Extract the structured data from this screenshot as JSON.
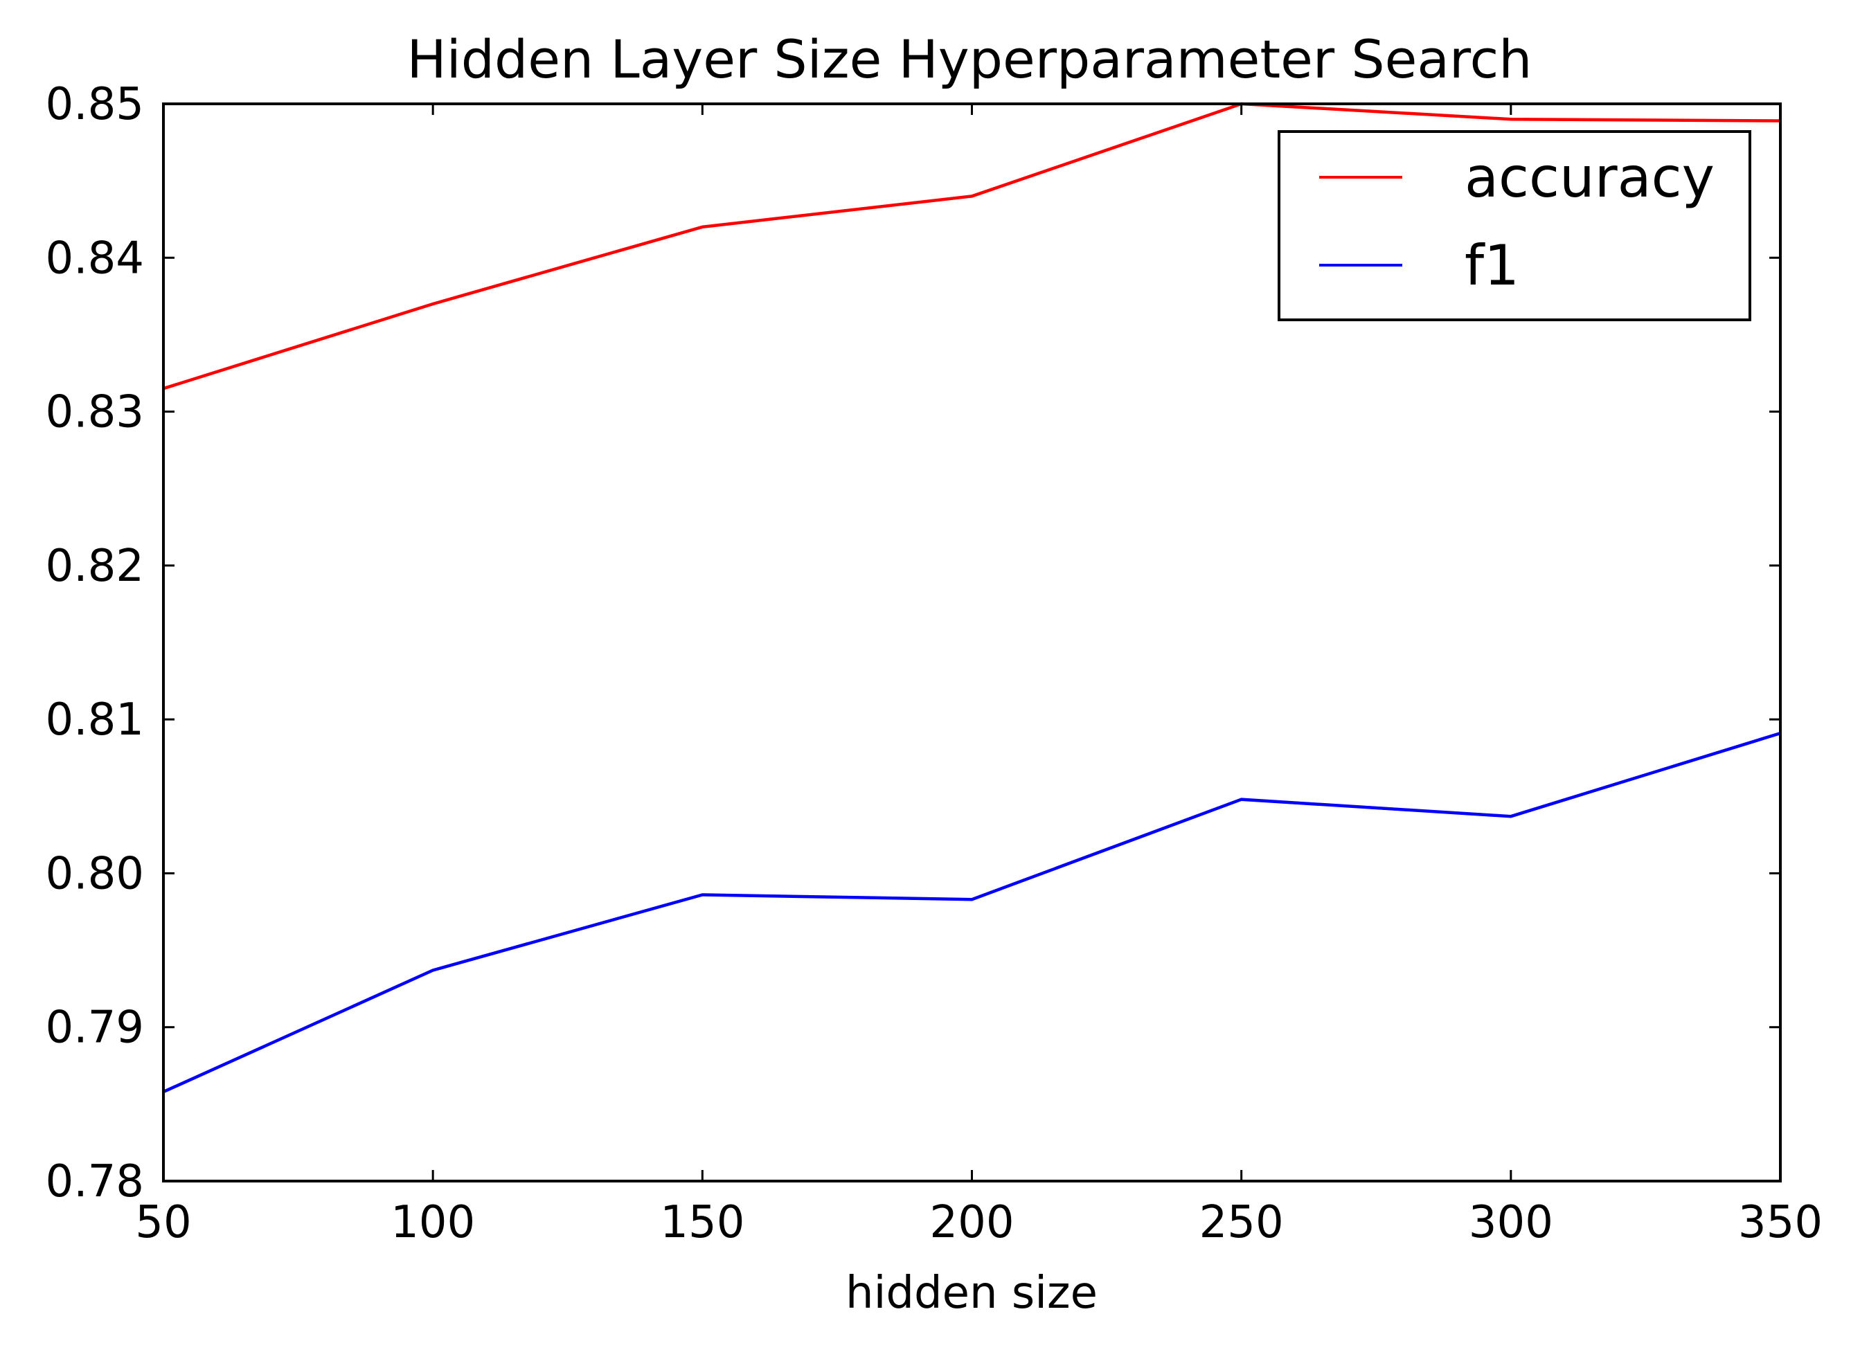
{
  "chart_data": {
    "type": "line",
    "title": "Hidden Layer Size Hyperparameter Search",
    "xlabel": "hidden size",
    "ylabel": "",
    "x": [
      50,
      100,
      150,
      200,
      250,
      300,
      350
    ],
    "xlim": [
      50,
      350
    ],
    "ylim": [
      0.78,
      0.85
    ],
    "xticks": [
      "50",
      "100",
      "150",
      "200",
      "250",
      "300",
      "350"
    ],
    "yticks": [
      "0.78",
      "0.79",
      "0.80",
      "0.81",
      "0.82",
      "0.83",
      "0.84",
      "0.85"
    ],
    "grid": false,
    "legend_position": "top-right",
    "series": [
      {
        "name": "accuracy",
        "color": "#ff0000",
        "values": [
          0.8315,
          0.837,
          0.842,
          0.844,
          0.85,
          0.849,
          0.8489
        ]
      },
      {
        "name": "f1",
        "color": "#0000ff",
        "values": [
          0.7858,
          0.7937,
          0.7986,
          0.7983,
          0.8048,
          0.8037,
          0.8091
        ]
      }
    ]
  }
}
